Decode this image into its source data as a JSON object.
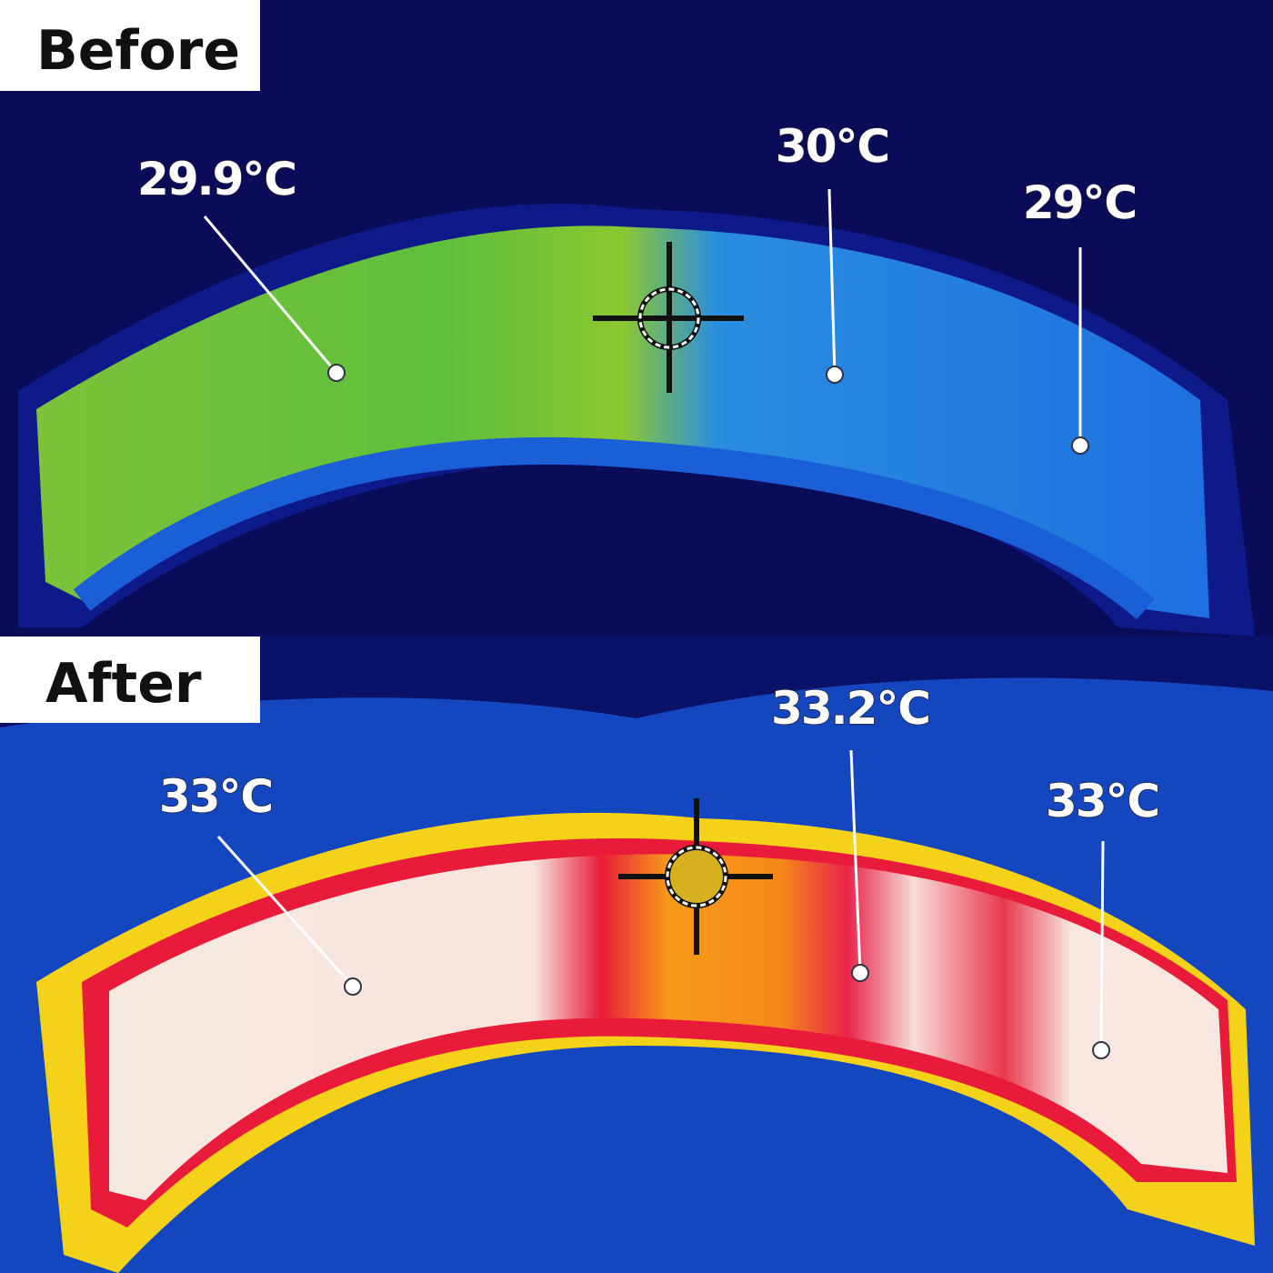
{
  "panels": [
    {
      "label": "Before",
      "readings": [
        "29.9℃",
        "30℃",
        "29℃"
      ]
    },
    {
      "label": "After",
      "readings": [
        "33℃",
        "33.2℃",
        "33℃"
      ]
    }
  ]
}
